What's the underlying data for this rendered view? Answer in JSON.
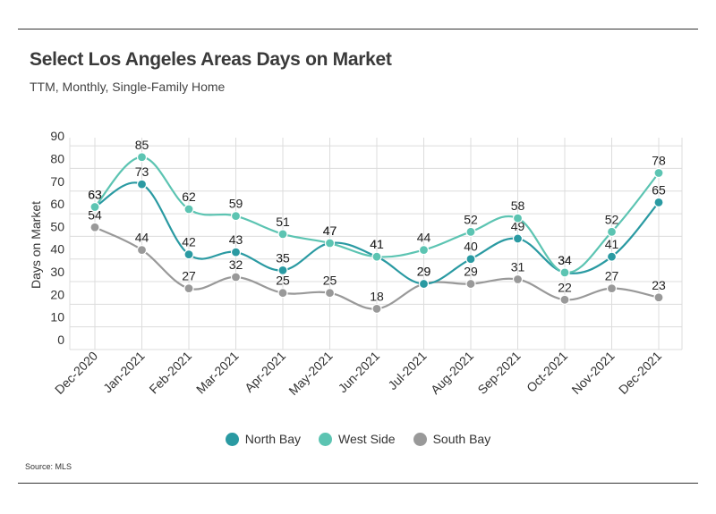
{
  "title": "Select Los Angeles Areas Days on Market",
  "subtitle": "TTM, Monthly, Single-Family Home",
  "source": "Source:  MLS",
  "chart_data": {
    "type": "line",
    "title": "Select Los Angeles Areas Days on Market",
    "subtitle": "TTM, Monthly, Single-Family Home",
    "xlabel": "",
    "ylabel": "Days on Market",
    "ylim": [
      0,
      90
    ],
    "yticks": [
      0,
      10,
      20,
      30,
      40,
      50,
      60,
      70,
      80,
      90
    ],
    "grid": "on",
    "legend_position": "bottom",
    "categories": [
      "Dec-2020",
      "Jan-2021",
      "Feb-2021",
      "Mar-2021",
      "Apr-2021",
      "May-2021",
      "Jun-2021",
      "Jul-2021",
      "Aug-2021",
      "Sep-2021",
      "Oct-2021",
      "Nov-2021",
      "Dec-2021"
    ],
    "series": [
      {
        "name": "North Bay",
        "color": "#2a9aa2",
        "values": [
          63,
          73,
          42,
          43,
          35,
          47,
          41,
          29,
          40,
          49,
          34,
          41,
          65
        ]
      },
      {
        "name": "West Side",
        "color": "#5cc4b2",
        "values": [
          63,
          85,
          62,
          59,
          51,
          47,
          41,
          44,
          52,
          58,
          34,
          52,
          78
        ]
      },
      {
        "name": "South Bay",
        "color": "#999999",
        "values": [
          54,
          44,
          27,
          32,
          25,
          25,
          18,
          29,
          29,
          31,
          22,
          27,
          23
        ]
      }
    ]
  }
}
